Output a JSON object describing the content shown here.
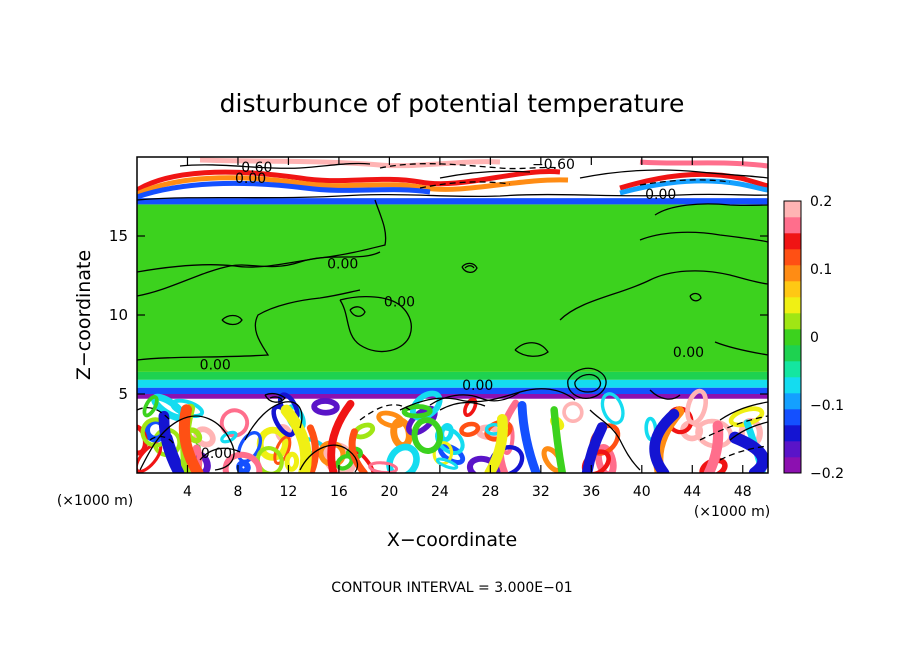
{
  "chart_data": {
    "type": "heatmap",
    "title": "disturbunce of potential temperature",
    "xlabel": "X−coordinate",
    "ylabel": "Z−coordinate",
    "x_unit": "(×1000 m)",
    "y_unit": "(×1000 m)",
    "footer": "CONTOUR INTERVAL = 3.000E−01",
    "xlim": [
      0,
      50
    ],
    "ylim": [
      0,
      20
    ],
    "x_ticks": [
      4,
      8,
      12,
      16,
      20,
      24,
      28,
      32,
      36,
      40,
      44,
      48
    ],
    "y_ticks": [
      5,
      10,
      15
    ],
    "colorbar": {
      "range": [
        -0.2,
        0.2
      ],
      "tick_values": [
        0.2,
        0.1,
        0,
        -0.1,
        -0.2
      ],
      "tick_labels": [
        "0.2",
        "0.1",
        "0",
        "−0.1",
        "−0.2"
      ],
      "colors": [
        "#8c10b0",
        "#5a14c8",
        "#1414d2",
        "#1450ff",
        "#14a0ff",
        "#14dcf0",
        "#14e6a0",
        "#1ed250",
        "#3cd21e",
        "#a0e614",
        "#f0f014",
        "#ffc814",
        "#ff8c14",
        "#ff5014",
        "#f01414",
        "#ff6e8c",
        "#ffb4b4"
      ]
    },
    "field_bands": [
      {
        "z": [
          0,
          4.7
        ],
        "description": "turbulent mixed eddies",
        "dominant_value": 0.0
      },
      {
        "z": [
          4.7,
          5.0
        ],
        "value": -0.18
      },
      {
        "z": [
          5.0,
          5.4
        ],
        "value": -0.12
      },
      {
        "z": [
          5.4,
          5.9
        ],
        "value": -0.07
      },
      {
        "z": [
          5.9,
          6.4
        ],
        "value": -0.03
      },
      {
        "z": [
          6.4,
          17.0
        ],
        "value": 0.0
      },
      {
        "z": [
          17.0,
          17.4
        ],
        "value": -0.12
      },
      {
        "z": [
          17.4,
          20.0
        ],
        "value": 0.4
      }
    ],
    "contour_labels": [
      {
        "text": "0.60",
        "x": 9.5,
        "z": 19.3
      },
      {
        "text": "0.00",
        "x": 9.0,
        "z": 18.6
      },
      {
        "text": "−0.60",
        "x": 33.0,
        "z": 19.5
      },
      {
        "text": "0.00",
        "x": 41.5,
        "z": 17.6
      },
      {
        "text": "0.00",
        "x": 16.3,
        "z": 13.2
      },
      {
        "text": "0.00",
        "x": 20.8,
        "z": 10.8
      },
      {
        "text": "0.00",
        "x": 43.7,
        "z": 7.6
      },
      {
        "text": "0.00",
        "x": 6.2,
        "z": 6.8
      },
      {
        "text": "0.00",
        "x": 27.0,
        "z": 5.5
      },
      {
        "text": "0.00",
        "x": 6.3,
        "z": 1.2
      }
    ]
  }
}
